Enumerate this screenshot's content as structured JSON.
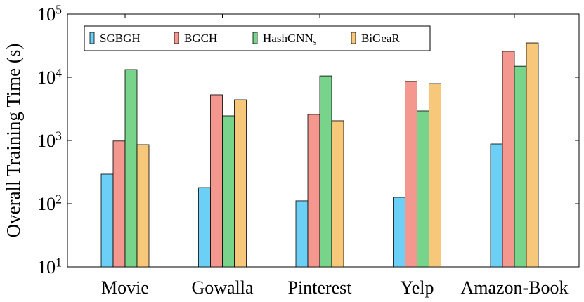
{
  "chart_data": {
    "type": "bar",
    "y_label": "Overall Training Time (s)",
    "log_scale": true,
    "categories": [
      "Movie",
      "Gowalla",
      "Pinterest",
      "Yelp",
      "Amazon-Book"
    ],
    "series": [
      {
        "name": "SGBGH",
        "color": "#6ccff6",
        "values": [
          293,
          180,
          111,
          126,
          880
        ]
      },
      {
        "name": "BGCH",
        "color": "#f4978e",
        "values": [
          980,
          5280,
          2580,
          8580,
          25800
        ]
      },
      {
        "name": "HashGNN_s",
        "color": "#77d48a",
        "values": [
          13250,
          2450,
          10500,
          2930,
          15000
        ]
      },
      {
        "name": "BiGeaR",
        "color": "#f8c87a",
        "values": [
          858,
          4410,
          2050,
          7940,
          35000
        ]
      }
    ],
    "ylim": [
      10,
      100000
    ],
    "yticks": [
      {
        "value": 10,
        "label": "10^1"
      },
      {
        "value": 100,
        "label": "10^2"
      },
      {
        "value": 1000,
        "label": "10^3"
      },
      {
        "value": 10000,
        "label": "10^4"
      },
      {
        "value": 100000,
        "label": "10^5"
      }
    ],
    "legend": "top-left"
  }
}
